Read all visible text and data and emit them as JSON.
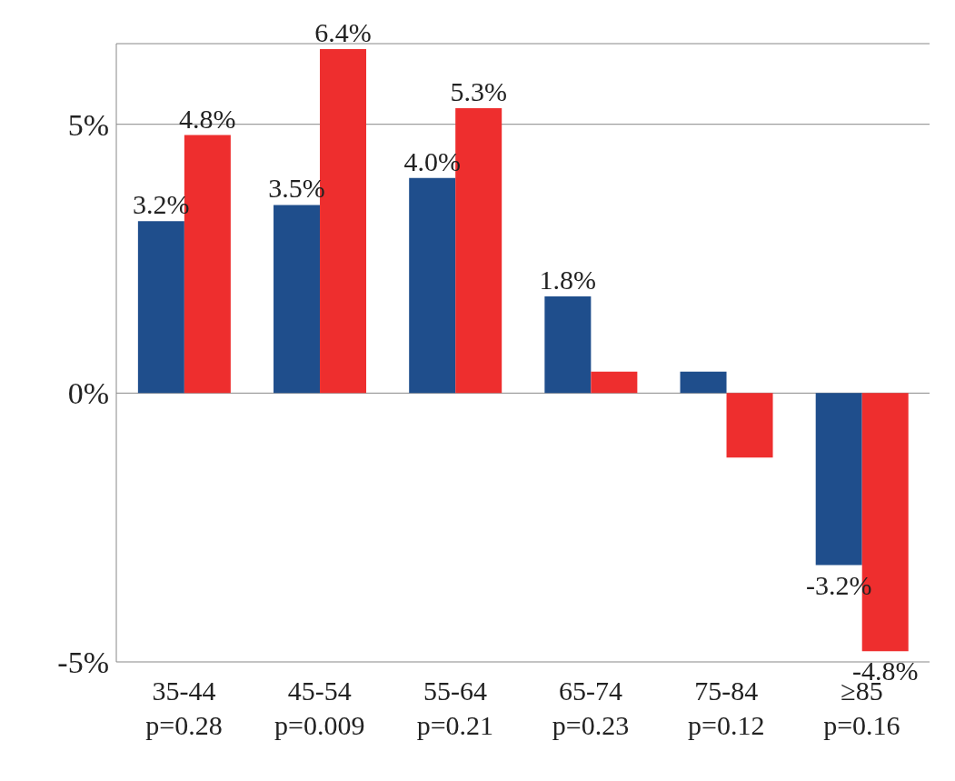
{
  "chart_data": {
    "type": "bar",
    "categories": [
      "35-44\np=0.28",
      "45-54\np=0.009",
      "55-64\np=0.21",
      "65-74\np=0.23",
      "75-84\np=0.12",
      "≥85\np=0.16"
    ],
    "series": [
      {
        "color": "#1f4e8c",
        "values": [
          3.2,
          3.5,
          4.0,
          1.8,
          0.4,
          -3.2
        ],
        "value_labels": [
          "3.2%",
          "3.5%",
          "4.0%",
          "1.8%",
          null,
          "-3.2%"
        ]
      },
      {
        "color": "#ee2e2e",
        "values": [
          4.8,
          6.4,
          5.3,
          0.4,
          -1.2,
          -4.8
        ],
        "value_labels": [
          "4.8%",
          "6.4%",
          "5.3%",
          null,
          null,
          "-4.8%"
        ]
      }
    ],
    "ylim": [
      -5,
      6.5
    ],
    "yticks": [
      {
        "value": -5,
        "label": "-5%"
      },
      {
        "value": 0,
        "label": "0%"
      },
      {
        "value": 5,
        "label": "5%"
      }
    ],
    "grid": "y"
  }
}
